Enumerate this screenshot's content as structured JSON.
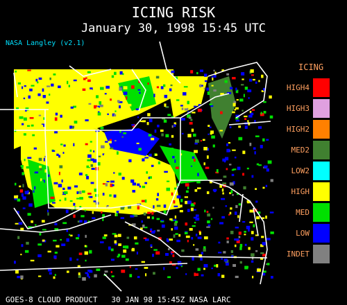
{
  "header": {
    "title": "ICING RISK",
    "subtitle": "January 30, 1998 15:45 UTC",
    "credit": "NASA Langley (v2.1)"
  },
  "legend": {
    "title": "ICING",
    "items": [
      {
        "label": "HIGH4",
        "color": "#ff0000"
      },
      {
        "label": "HIGH3",
        "color": "#e0a0e0"
      },
      {
        "label": "HIGH2",
        "color": "#ff8000"
      },
      {
        "label": "MED2",
        "color": "#408030"
      },
      {
        "label": "LOW2",
        "color": "#00ffff"
      },
      {
        "label": "HIGH",
        "color": "#ffff00"
      },
      {
        "label": "MED",
        "color": "#00e000"
      },
      {
        "label": "LOW",
        "color": "#0000ff"
      },
      {
        "label": "INDET",
        "color": "#808080"
      }
    ]
  },
  "footer": "GOES-8 CLOUD PRODUCT   30 JAN 98 15:45Z NASA LARC"
}
